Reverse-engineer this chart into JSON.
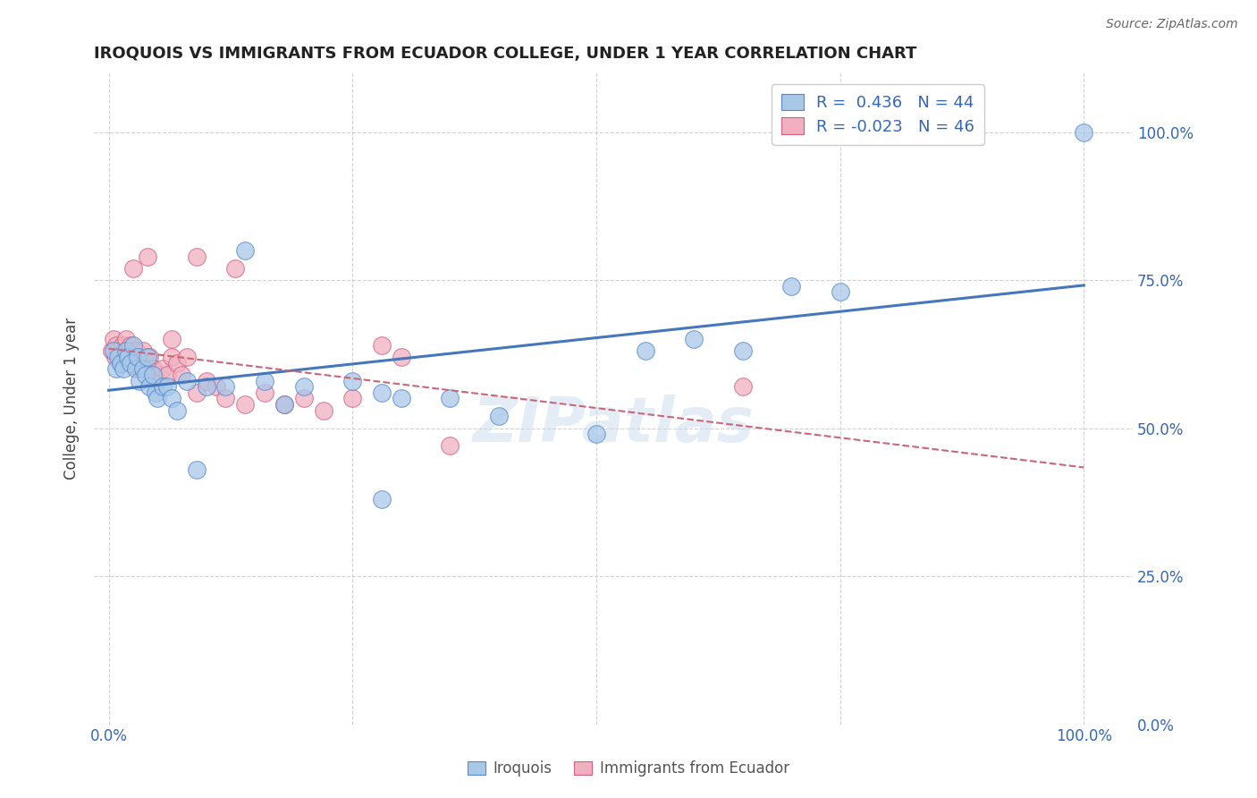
{
  "title": "IROQUOIS VS IMMIGRANTS FROM ECUADOR COLLEGE, UNDER 1 YEAR CORRELATION CHART",
  "source": "Source: ZipAtlas.com",
  "ylabel": "College, Under 1 year",
  "grid_color": "#cccccc",
  "background_color": "#ffffff",
  "watermark": "ZIPatlas",
  "legend_R1": "0.436",
  "legend_N1": "44",
  "legend_R2": "-0.023",
  "legend_N2": "46",
  "blue_face": "#a8c8e8",
  "blue_edge": "#5588cc",
  "pink_face": "#f0b0c0",
  "pink_edge": "#d06080",
  "line_blue_color": "#4477bb",
  "line_pink_color": "#cc6677",
  "iroquois_x": [
    0.005,
    0.008,
    0.01,
    0.012,
    0.015,
    0.018,
    0.02,
    0.022,
    0.025,
    0.028,
    0.03,
    0.032,
    0.035,
    0.038,
    0.04,
    0.042,
    0.045,
    0.048,
    0.05,
    0.055,
    0.06,
    0.065,
    0.07,
    0.08,
    0.09,
    0.1,
    0.12,
    0.14,
    0.16,
    0.18,
    0.2,
    0.25,
    0.28,
    0.3,
    0.35,
    0.4,
    0.5,
    0.55,
    0.6,
    0.65,
    0.7,
    0.75,
    0.28,
    1.0
  ],
  "iroquois_y": [
    0.63,
    0.6,
    0.62,
    0.61,
    0.6,
    0.63,
    0.62,
    0.61,
    0.64,
    0.6,
    0.62,
    0.58,
    0.6,
    0.59,
    0.62,
    0.57,
    0.59,
    0.56,
    0.55,
    0.57,
    0.57,
    0.55,
    0.53,
    0.58,
    0.43,
    0.57,
    0.57,
    0.8,
    0.58,
    0.54,
    0.57,
    0.58,
    0.56,
    0.55,
    0.55,
    0.52,
    0.49,
    0.63,
    0.65,
    0.63,
    0.74,
    0.73,
    0.38,
    1.0
  ],
  "ecuador_x": [
    0.003,
    0.005,
    0.007,
    0.008,
    0.01,
    0.012,
    0.014,
    0.016,
    0.018,
    0.02,
    0.022,
    0.025,
    0.028,
    0.03,
    0.032,
    0.035,
    0.038,
    0.04,
    0.042,
    0.045,
    0.05,
    0.055,
    0.06,
    0.065,
    0.07,
    0.075,
    0.08,
    0.09,
    0.1,
    0.11,
    0.12,
    0.14,
    0.16,
    0.18,
    0.2,
    0.22,
    0.25,
    0.28,
    0.3,
    0.35,
    0.13,
    0.09,
    0.065,
    0.04,
    0.025,
    0.65
  ],
  "ecuador_y": [
    0.63,
    0.65,
    0.62,
    0.64,
    0.63,
    0.61,
    0.64,
    0.63,
    0.65,
    0.62,
    0.64,
    0.61,
    0.63,
    0.62,
    0.6,
    0.63,
    0.61,
    0.6,
    0.62,
    0.6,
    0.58,
    0.6,
    0.59,
    0.62,
    0.61,
    0.59,
    0.62,
    0.56,
    0.58,
    0.57,
    0.55,
    0.54,
    0.56,
    0.54,
    0.55,
    0.53,
    0.55,
    0.64,
    0.62,
    0.47,
    0.77,
    0.79,
    0.65,
    0.79,
    0.77,
    0.57
  ],
  "xlim_min": -0.015,
  "xlim_max": 1.05,
  "ylim_min": 0.0,
  "ylim_max": 1.1
}
